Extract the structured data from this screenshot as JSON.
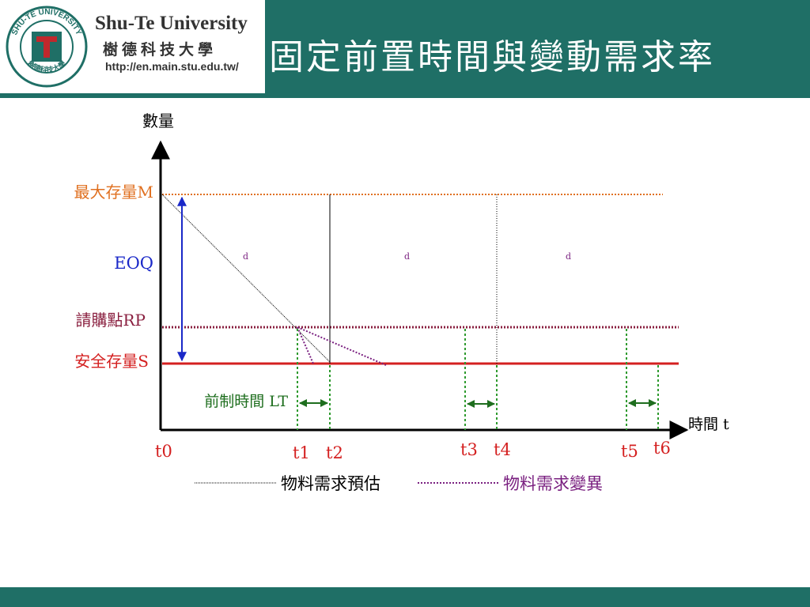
{
  "header": {
    "university_en": "Shu-Te University",
    "university_zh": "樹德科技大學",
    "url": "http://en.main.stu.edu.tw/",
    "seal_text": "SHU-TE UNIVERSITY",
    "seal_bottom": "樹德科技大學",
    "slide_title": "固定前置時間與變動需求率"
  },
  "diagram": {
    "y_axis_label": "數量",
    "x_axis_label": "時間 t",
    "max_stock_label": "最大存量M",
    "eoq_label": "EOQ",
    "reorder_label": "請購點RP",
    "safety_label": "安全存量S",
    "lead_time_label": "前制時間 LT",
    "demand_labels": [
      "d",
      "d",
      "d"
    ],
    "time_labels": [
      "t0",
      "t1",
      "t2",
      "t3",
      "t4",
      "t5",
      "t6"
    ]
  },
  "legend": {
    "forecast_label": "物料需求預估",
    "variance_label": "物料需求變異"
  },
  "colors": {
    "header_green": "#1f6f66",
    "orange": "#e07020",
    "red": "#d42020",
    "maroon": "#8a2040",
    "green": "#2e9a2e",
    "blue": "#1a28c8",
    "purple": "#7a2080"
  }
}
